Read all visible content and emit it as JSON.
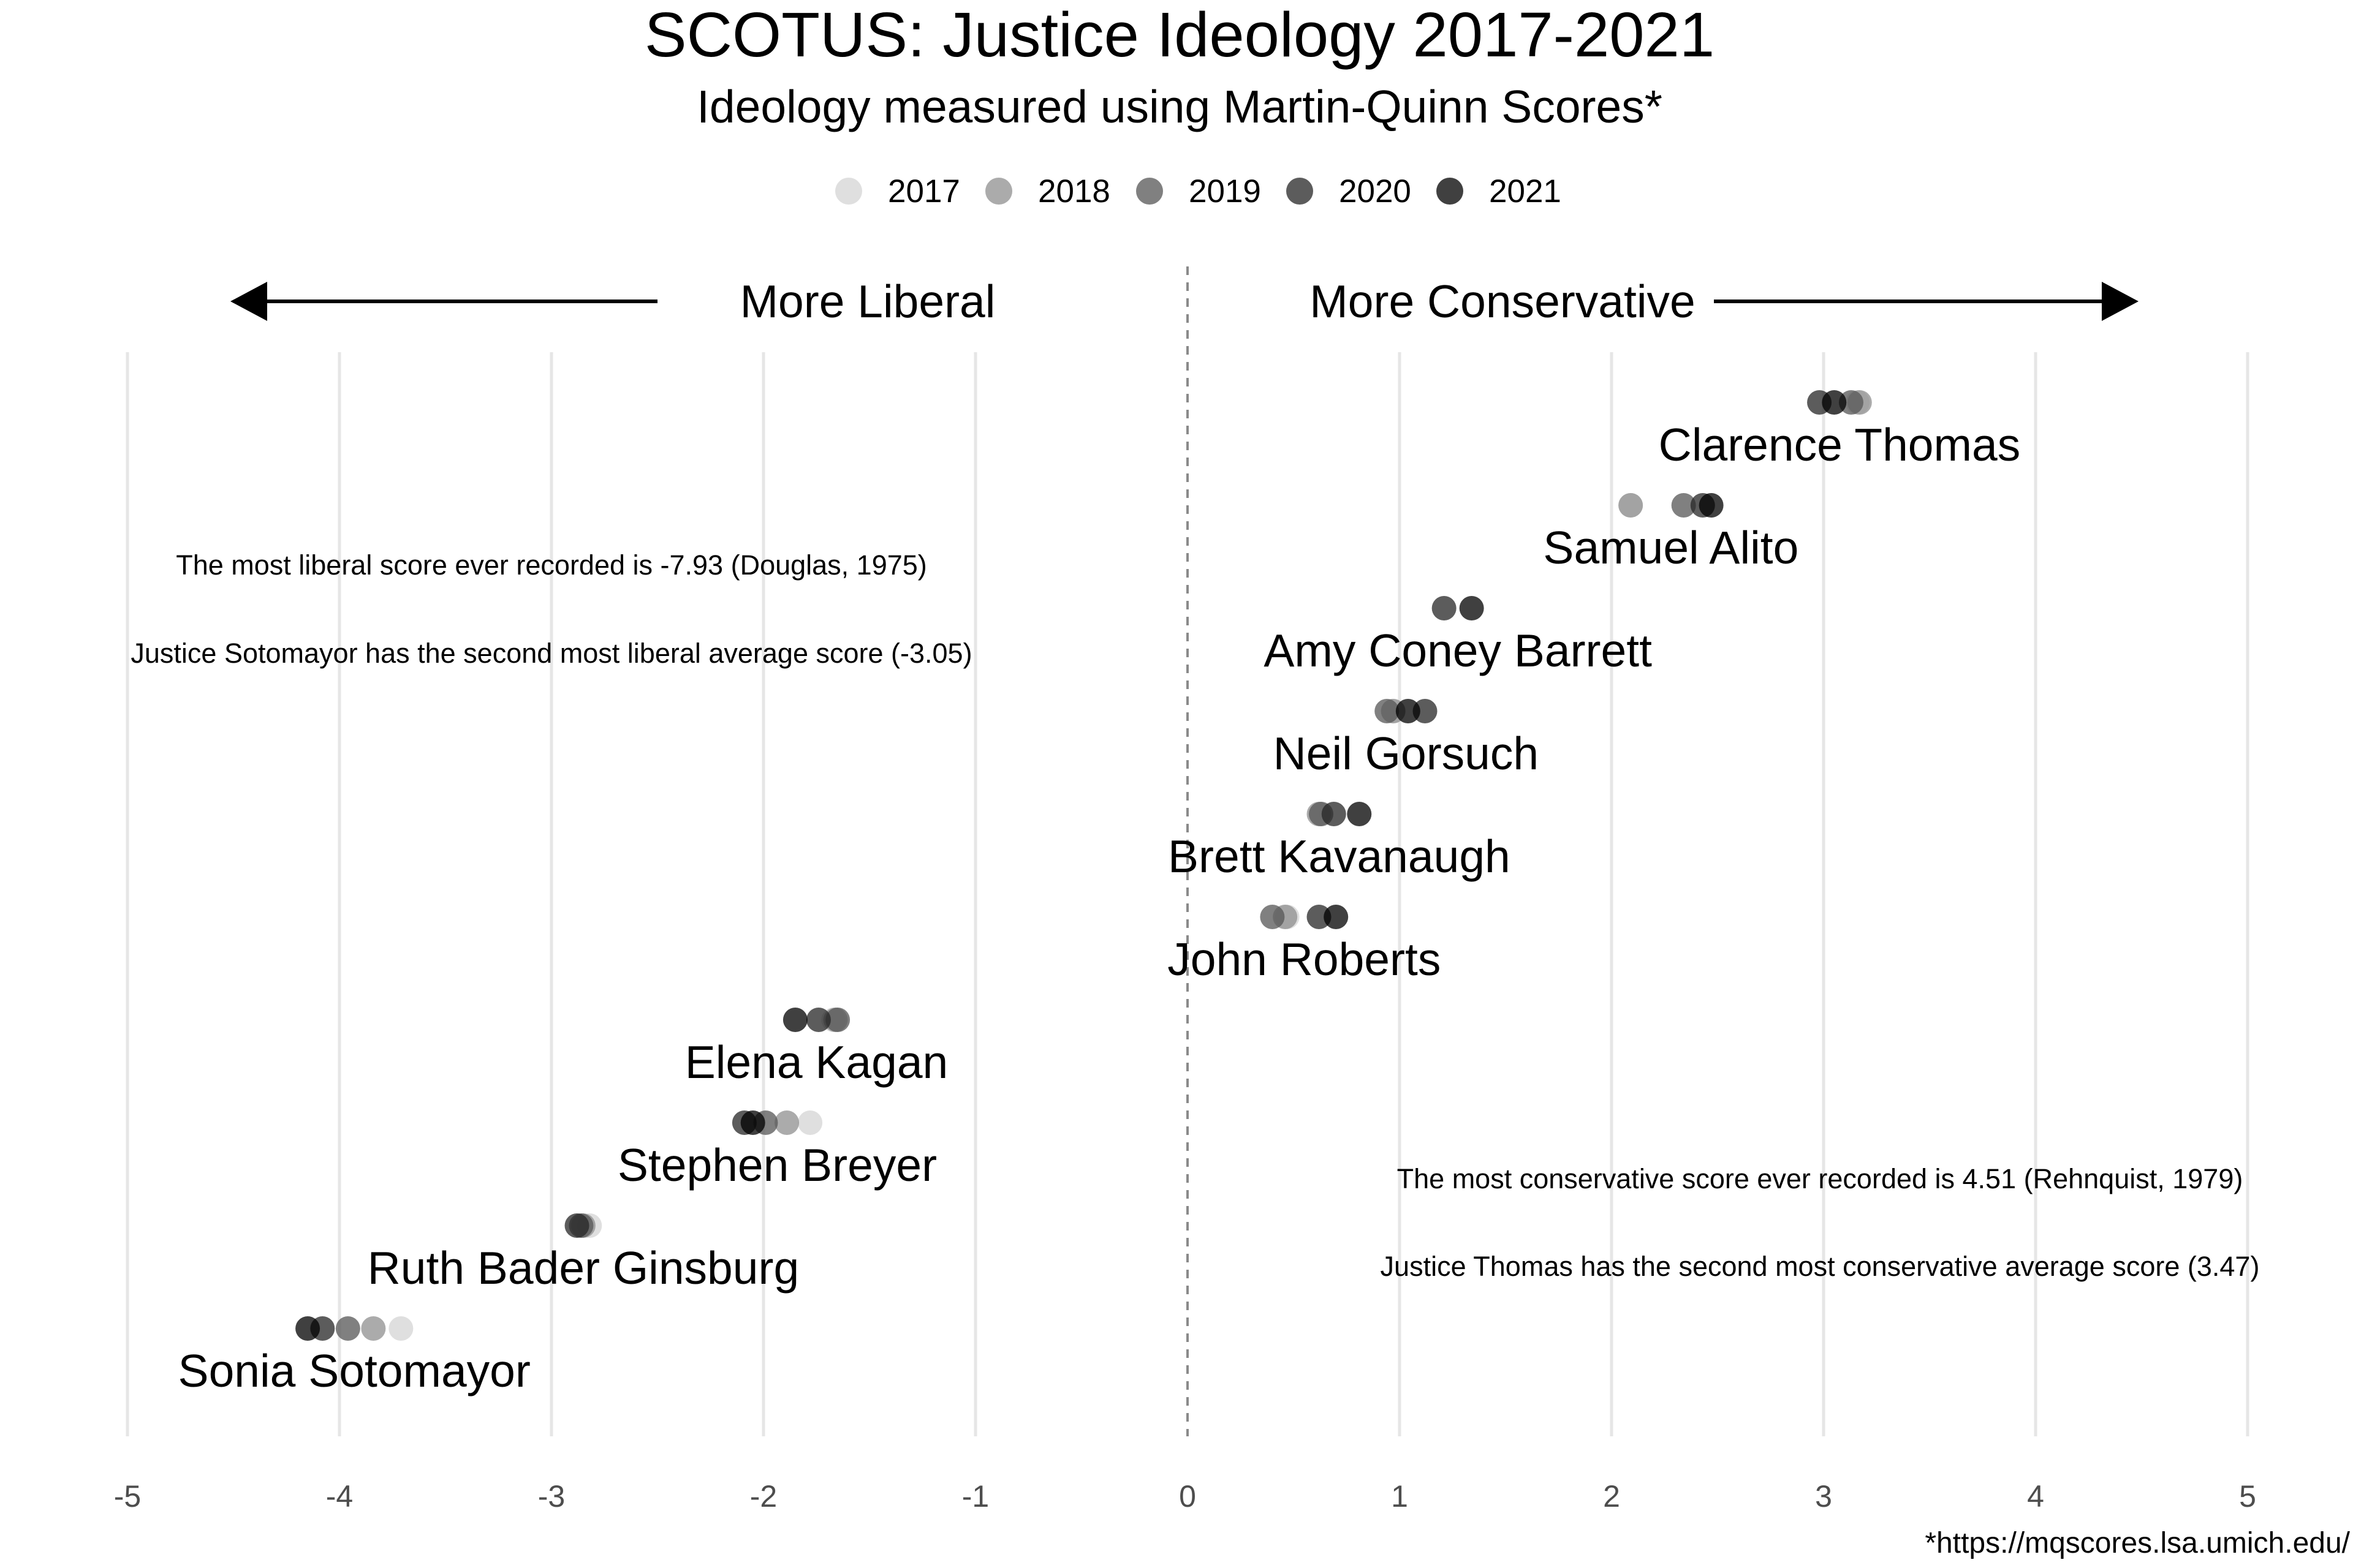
{
  "title": "SCOTUS:  Justice Ideology 2017-2021",
  "subtitle": "Ideology measured using Martin-Quinn Scores*",
  "direction_labels": {
    "liberal": "More Liberal",
    "conservative": "More Conservative"
  },
  "notes": [
    "The most liberal score ever recorded is -7.93 (Douglas, 1975)",
    "Justice Sotomayor has the second most liberal average score (-3.05)",
    "The most conservative score ever recorded is 4.51 (Rehnquist, 1979)",
    "Justice Thomas has the second most conservative average score (3.47)"
  ],
  "source": "*https://mqscores.lsa.umich.edu/",
  "colors": {
    "2017": "#d4d4d4",
    "2018": "#8f8f8f",
    "2019": "#555555",
    "2020": "#262626",
    "2021": "#000000"
  },
  "chart_data": {
    "type": "scatter",
    "title": "SCOTUS:  Justice Ideology 2017-2021",
    "subtitle": "Ideology measured using Martin-Quinn Scores*",
    "xlabel": "",
    "ylabel": "",
    "xlim": [
      -5,
      5
    ],
    "x_ticks": [
      -5,
      -4,
      -3,
      -2,
      -1,
      0,
      1,
      2,
      3,
      4,
      5
    ],
    "reference_line_x": 0,
    "grid": "vertical major",
    "legend_position": "top",
    "legend": [
      "2017",
      "2018",
      "2019",
      "2020",
      "2021"
    ],
    "categories": [
      "Clarence Thomas",
      "Samuel Alito",
      "Amy Coney Barrett",
      "Neil Gorsuch",
      "Brett Kavanaugh",
      "John Roberts",
      "Elena Kagan",
      "Stephen Breyer",
      "Ruth Bader Ginsburg",
      "Sonia Sotomayor"
    ],
    "series": [
      {
        "name": "2017",
        "values": [
          3.16,
          2.09,
          null,
          0.97,
          null,
          0.47,
          -1.67,
          -1.78,
          -2.82,
          -3.71
        ]
      },
      {
        "name": "2018",
        "values": [
          3.17,
          2.09,
          null,
          0.97,
          0.62,
          0.46,
          -1.66,
          -1.89,
          -2.85,
          -3.84
        ]
      },
      {
        "name": "2019",
        "values": [
          3.13,
          2.34,
          null,
          0.94,
          0.63,
          0.4,
          -1.65,
          -1.99,
          -2.86,
          -3.96
        ]
      },
      {
        "name": "2020",
        "values": [
          2.98,
          2.43,
          1.21,
          1.12,
          0.69,
          0.62,
          -1.74,
          -2.09,
          -2.88,
          -4.08
        ]
      },
      {
        "name": "2021",
        "values": [
          3.05,
          2.47,
          1.34,
          1.04,
          0.81,
          0.7,
          -1.85,
          -2.05,
          null,
          -4.15
        ]
      }
    ]
  }
}
